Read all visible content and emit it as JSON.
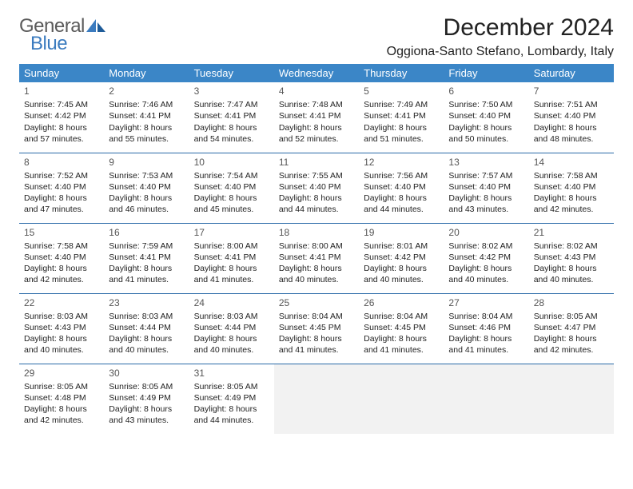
{
  "logo": {
    "text1": "General",
    "text2": "Blue"
  },
  "title": "December 2024",
  "subtitle": "Oggiona-Santo Stefano, Lombardy, Italy",
  "colors": {
    "header_bg": "#3b86c7",
    "header_text": "#ffffff",
    "row_border": "#2a6aa8",
    "logo_gray": "#5a5a5a",
    "logo_blue": "#3b7bbf",
    "empty_bg": "#f2f2f2"
  },
  "days": [
    "Sunday",
    "Monday",
    "Tuesday",
    "Wednesday",
    "Thursday",
    "Friday",
    "Saturday"
  ],
  "weeks": [
    [
      {
        "n": "1",
        "sr": "7:45 AM",
        "ss": "4:42 PM",
        "dl": "8 hours and 57 minutes."
      },
      {
        "n": "2",
        "sr": "7:46 AM",
        "ss": "4:41 PM",
        "dl": "8 hours and 55 minutes."
      },
      {
        "n": "3",
        "sr": "7:47 AM",
        "ss": "4:41 PM",
        "dl": "8 hours and 54 minutes."
      },
      {
        "n": "4",
        "sr": "7:48 AM",
        "ss": "4:41 PM",
        "dl": "8 hours and 52 minutes."
      },
      {
        "n": "5",
        "sr": "7:49 AM",
        "ss": "4:41 PM",
        "dl": "8 hours and 51 minutes."
      },
      {
        "n": "6",
        "sr": "7:50 AM",
        "ss": "4:40 PM",
        "dl": "8 hours and 50 minutes."
      },
      {
        "n": "7",
        "sr": "7:51 AM",
        "ss": "4:40 PM",
        "dl": "8 hours and 48 minutes."
      }
    ],
    [
      {
        "n": "8",
        "sr": "7:52 AM",
        "ss": "4:40 PM",
        "dl": "8 hours and 47 minutes."
      },
      {
        "n": "9",
        "sr": "7:53 AM",
        "ss": "4:40 PM",
        "dl": "8 hours and 46 minutes."
      },
      {
        "n": "10",
        "sr": "7:54 AM",
        "ss": "4:40 PM",
        "dl": "8 hours and 45 minutes."
      },
      {
        "n": "11",
        "sr": "7:55 AM",
        "ss": "4:40 PM",
        "dl": "8 hours and 44 minutes."
      },
      {
        "n": "12",
        "sr": "7:56 AM",
        "ss": "4:40 PM",
        "dl": "8 hours and 44 minutes."
      },
      {
        "n": "13",
        "sr": "7:57 AM",
        "ss": "4:40 PM",
        "dl": "8 hours and 43 minutes."
      },
      {
        "n": "14",
        "sr": "7:58 AM",
        "ss": "4:40 PM",
        "dl": "8 hours and 42 minutes."
      }
    ],
    [
      {
        "n": "15",
        "sr": "7:58 AM",
        "ss": "4:40 PM",
        "dl": "8 hours and 42 minutes."
      },
      {
        "n": "16",
        "sr": "7:59 AM",
        "ss": "4:41 PM",
        "dl": "8 hours and 41 minutes."
      },
      {
        "n": "17",
        "sr": "8:00 AM",
        "ss": "4:41 PM",
        "dl": "8 hours and 41 minutes."
      },
      {
        "n": "18",
        "sr": "8:00 AM",
        "ss": "4:41 PM",
        "dl": "8 hours and 40 minutes."
      },
      {
        "n": "19",
        "sr": "8:01 AM",
        "ss": "4:42 PM",
        "dl": "8 hours and 40 minutes."
      },
      {
        "n": "20",
        "sr": "8:02 AM",
        "ss": "4:42 PM",
        "dl": "8 hours and 40 minutes."
      },
      {
        "n": "21",
        "sr": "8:02 AM",
        "ss": "4:43 PM",
        "dl": "8 hours and 40 minutes."
      }
    ],
    [
      {
        "n": "22",
        "sr": "8:03 AM",
        "ss": "4:43 PM",
        "dl": "8 hours and 40 minutes."
      },
      {
        "n": "23",
        "sr": "8:03 AM",
        "ss": "4:44 PM",
        "dl": "8 hours and 40 minutes."
      },
      {
        "n": "24",
        "sr": "8:03 AM",
        "ss": "4:44 PM",
        "dl": "8 hours and 40 minutes."
      },
      {
        "n": "25",
        "sr": "8:04 AM",
        "ss": "4:45 PM",
        "dl": "8 hours and 41 minutes."
      },
      {
        "n": "26",
        "sr": "8:04 AM",
        "ss": "4:45 PM",
        "dl": "8 hours and 41 minutes."
      },
      {
        "n": "27",
        "sr": "8:04 AM",
        "ss": "4:46 PM",
        "dl": "8 hours and 41 minutes."
      },
      {
        "n": "28",
        "sr": "8:05 AM",
        "ss": "4:47 PM",
        "dl": "8 hours and 42 minutes."
      }
    ],
    [
      {
        "n": "29",
        "sr": "8:05 AM",
        "ss": "4:48 PM",
        "dl": "8 hours and 42 minutes."
      },
      {
        "n": "30",
        "sr": "8:05 AM",
        "ss": "4:49 PM",
        "dl": "8 hours and 43 minutes."
      },
      {
        "n": "31",
        "sr": "8:05 AM",
        "ss": "4:49 PM",
        "dl": "8 hours and 44 minutes."
      },
      null,
      null,
      null,
      null
    ]
  ],
  "labels": {
    "sunrise": "Sunrise: ",
    "sunset": "Sunset: ",
    "daylight": "Daylight: "
  }
}
